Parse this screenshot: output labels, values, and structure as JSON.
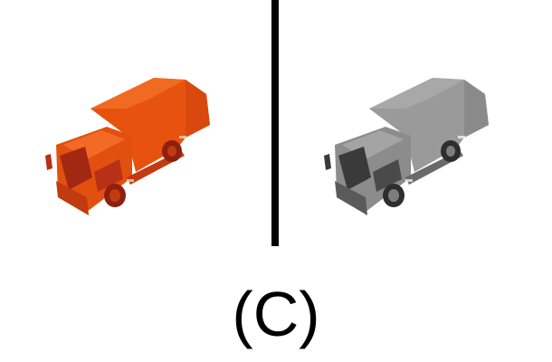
{
  "panels": [
    {
      "name": "colored-truck",
      "body_color": "#e8520f",
      "shade_color": "#c23a10",
      "dark_color": "#8e2010"
    },
    {
      "name": "grayscale-truck",
      "body_color": "#9a9a9a",
      "shade_color": "#7d7d7d",
      "dark_color": "#3a3a3a"
    }
  ],
  "divider_color": "#000000",
  "caption": "(C)"
}
